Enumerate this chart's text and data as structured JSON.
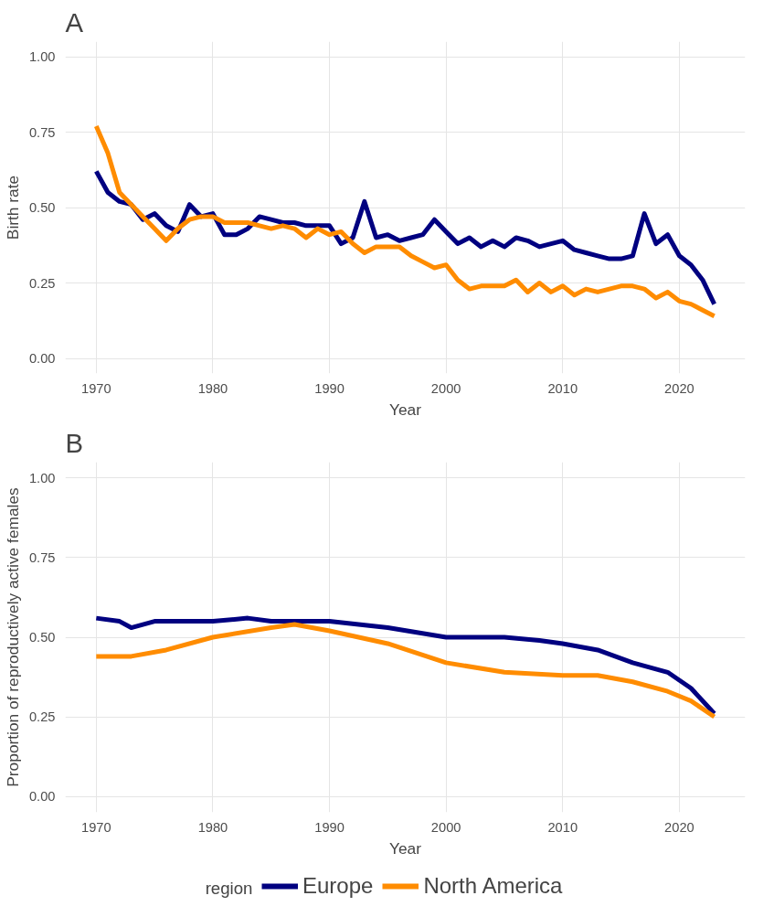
{
  "chart_data": [
    {
      "type": "line",
      "title": "A",
      "xlabel": "Year",
      "ylabel": "Birth rate",
      "xlim": [
        1967.35,
        2025.65
      ],
      "ylim": [
        -0.05,
        1.05
      ],
      "xticks": [
        1970,
        1980,
        1990,
        2000,
        2010,
        2020
      ],
      "yticks": [
        {
          "value": 0,
          "label": "0.00"
        },
        {
          "value": 0.25,
          "label": "0.25"
        },
        {
          "value": 0.5,
          "label": "0.50"
        },
        {
          "value": 0.75,
          "label": "0.75"
        },
        {
          "value": 1,
          "label": "1.00"
        }
      ],
      "grid": true,
      "legend": false,
      "marker": "none",
      "line_style": "solid",
      "x": [
        1970,
        1971,
        1972,
        1973,
        1974,
        1975,
        1976,
        1977,
        1978,
        1979,
        1980,
        1981,
        1982,
        1983,
        1984,
        1985,
        1986,
        1987,
        1988,
        1989,
        1990,
        1991,
        1992,
        1993,
        1994,
        1995,
        1996,
        1997,
        1998,
        1999,
        2000,
        2001,
        2002,
        2003,
        2004,
        2005,
        2006,
        2007,
        2008,
        2009,
        2010,
        2011,
        2012,
        2013,
        2014,
        2015,
        2016,
        2017,
        2018,
        2019,
        2020,
        2021,
        2022,
        2023
      ],
      "series": [
        {
          "color": "#000080",
          "values": [
            0.62,
            0.55,
            0.52,
            0.51,
            0.46,
            0.48,
            0.44,
            0.42,
            0.51,
            0.47,
            0.48,
            0.41,
            0.41,
            0.43,
            0.47,
            0.46,
            0.45,
            0.45,
            0.44,
            0.44,
            0.44,
            0.38,
            0.4,
            0.52,
            0.4,
            0.41,
            0.39,
            0.4,
            0.41,
            0.46,
            0.42,
            0.38,
            0.4,
            0.37,
            0.39,
            0.37,
            0.4,
            0.39,
            0.37,
            0.38,
            0.39,
            0.36,
            0.35,
            0.34,
            0.33,
            0.33,
            0.34,
            0.48,
            0.38,
            0.41,
            0.34,
            0.31,
            0.26,
            0.18
          ]
        },
        {
          "color": "#ff8c00",
          "values": [
            0.77,
            0.68,
            0.55,
            0.51,
            0.47,
            0.43,
            0.39,
            0.43,
            0.46,
            0.47,
            0.47,
            0.45,
            0.45,
            0.45,
            0.44,
            0.43,
            0.44,
            0.43,
            0.4,
            0.43,
            0.41,
            0.42,
            0.38,
            0.35,
            0.37,
            0.37,
            0.37,
            0.34,
            0.32,
            0.3,
            0.31,
            0.26,
            0.23,
            0.24,
            0.24,
            0.24,
            0.26,
            0.22,
            0.25,
            0.22,
            0.24,
            0.21,
            0.23,
            0.22,
            0.23,
            0.24,
            0.24,
            0.23,
            0.2,
            0.22,
            0.19,
            0.18,
            0.16,
            0.14
          ]
        }
      ]
    },
    {
      "type": "line",
      "title": "B",
      "xlabel": "Year",
      "ylabel": "Proportion of reproductively active females",
      "xlim": [
        1967.35,
        2025.65
      ],
      "ylim": [
        -0.05,
        1.05
      ],
      "xticks": [
        1970,
        1980,
        1990,
        2000,
        2010,
        2020
      ],
      "yticks": [
        {
          "value": 0,
          "label": "0.00"
        },
        {
          "value": 0.25,
          "label": "0.25"
        },
        {
          "value": 0.5,
          "label": "0.50"
        },
        {
          "value": 0.75,
          "label": "0.75"
        },
        {
          "value": 1,
          "label": "1.00"
        }
      ],
      "grid": true,
      "legend": "bottom",
      "legend_title": "region",
      "marker": "none",
      "line_style": "solid",
      "series": [
        {
          "name": "Europe",
          "color": "#000080",
          "x": [
            1970,
            1972,
            1973,
            1975,
            1980,
            1983,
            1985,
            1990,
            1995,
            2000,
            2005,
            2008,
            2010,
            2013,
            2016,
            2019,
            2021,
            2023
          ],
          "values": [
            0.56,
            0.55,
            0.53,
            0.55,
            0.55,
            0.56,
            0.55,
            0.55,
            0.53,
            0.5,
            0.5,
            0.49,
            0.48,
            0.46,
            0.42,
            0.39,
            0.34,
            0.26
          ]
        },
        {
          "name": "North America",
          "color": "#ff8c00",
          "x": [
            1970,
            1973,
            1976,
            1980,
            1985,
            1987,
            1990,
            1995,
            2000,
            2005,
            2010,
            2013,
            2016,
            2019,
            2021,
            2023
          ],
          "values": [
            0.44,
            0.44,
            0.46,
            0.5,
            0.53,
            0.54,
            0.52,
            0.48,
            0.42,
            0.39,
            0.38,
            0.38,
            0.36,
            0.33,
            0.3,
            0.25
          ]
        }
      ]
    }
  ]
}
